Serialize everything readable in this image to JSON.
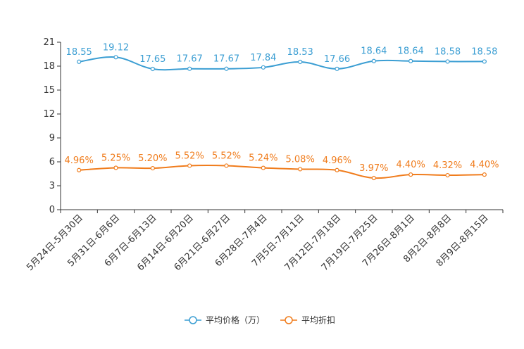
{
  "chart_data": {
    "type": "line",
    "title": "",
    "xlabel": "",
    "ylabel": "",
    "ylim": [
      0,
      21
    ],
    "yticks": [
      0,
      3,
      6,
      9,
      12,
      15,
      18,
      21
    ],
    "grid": false,
    "legend_position": "bottom-center",
    "categories": [
      "5月24日-5月30日",
      "5月31日-6月6日",
      "6月7日-6月13日",
      "6月14日-6月20日",
      "6月21日-6月27日",
      "6月28日-7月4日",
      "7月5日-7月11日",
      "7月12日-7月18日",
      "7月19日-7月25日",
      "7月26日-8月1日",
      "8月2日-8月8日",
      "8月9日-8月15日"
    ],
    "series": [
      {
        "name": "平均价格（万）",
        "color": "#3b9ed3",
        "values": [
          18.55,
          19.12,
          17.65,
          17.67,
          17.67,
          17.84,
          18.53,
          17.66,
          18.64,
          18.64,
          18.58,
          18.58
        ],
        "labels": [
          "18.55",
          "19.12",
          "17.65",
          "17.67",
          "17.67",
          "17.84",
          "18.53",
          "17.66",
          "18.64",
          "18.64",
          "18.58",
          "18.58"
        ]
      },
      {
        "name": "平均折扣",
        "color": "#f07c1c",
        "values": [
          4.96,
          5.25,
          5.2,
          5.52,
          5.52,
          5.24,
          5.08,
          4.96,
          3.97,
          4.4,
          4.32,
          4.4
        ],
        "labels": [
          "4.96%",
          "5.25%",
          "5.20%",
          "5.52%",
          "5.52%",
          "5.24%",
          "5.08%",
          "4.96%",
          "3.97%",
          "4.40%",
          "4.32%",
          "4.40%"
        ]
      }
    ]
  }
}
